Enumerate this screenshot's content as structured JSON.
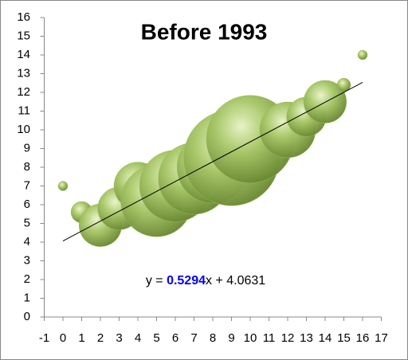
{
  "chart_data": {
    "type": "bubble",
    "title": "Before 1993",
    "x": [
      0,
      1,
      2,
      3,
      4,
      5,
      6,
      7,
      8,
      9,
      10,
      12,
      13,
      14,
      15,
      16
    ],
    "y": [
      7,
      5.6,
      4.9,
      5.8,
      7,
      6.2,
      7,
      7.4,
      8,
      8.5,
      9.5,
      10,
      10.7,
      11.5,
      12.4,
      14
    ],
    "sizes": [
      1,
      5,
      20,
      20,
      25,
      56,
      56,
      56,
      56,
      100,
      84,
      34,
      17,
      20,
      2,
      1
    ],
    "color": "#9bbb59",
    "xlim": [
      -1,
      17
    ],
    "xticks": [
      -1,
      0,
      1,
      2,
      3,
      4,
      5,
      6,
      7,
      8,
      9,
      10,
      11,
      12,
      13,
      14,
      15,
      16,
      17
    ],
    "ylim": [
      0,
      16
    ],
    "yticks": [
      0,
      1,
      2,
      3,
      4,
      5,
      6,
      7,
      8,
      9,
      10,
      11,
      12,
      13,
      14,
      15,
      16
    ],
    "trendline": {
      "prefix": "y = ",
      "slope": 0.5294,
      "middle": "x + ",
      "intercept": 4.0631,
      "slope_color": "#0000ff"
    }
  }
}
